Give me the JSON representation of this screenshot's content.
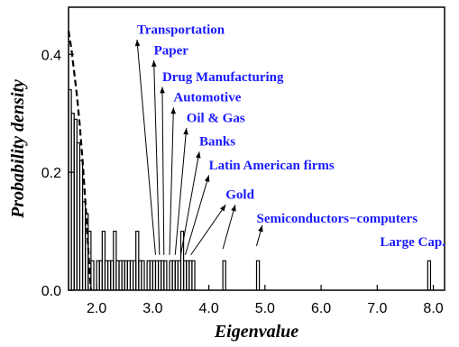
{
  "chart_data": {
    "type": "histogram",
    "xlabel": "Eigenvalue",
    "ylabel": "Probability density",
    "xlim": [
      1.5,
      8.2
    ],
    "ylim": [
      0.0,
      0.48
    ],
    "x_ticks": [
      2.0,
      3.0,
      4.0,
      5.0,
      6.0,
      7.0,
      8.0
    ],
    "x_tick_labels": [
      "2.0",
      "3.0",
      "4.0",
      "5.0",
      "6.0",
      "7.0",
      "8.0"
    ],
    "y_ticks": [
      0.0,
      0.2,
      0.4
    ],
    "y_tick_labels": [
      "0.0",
      "0.2",
      "0.4"
    ],
    "bin_width": 0.05,
    "bulk_histogram": {
      "x": [
        1.5,
        1.55,
        1.6,
        1.65,
        1.7,
        1.75,
        1.8,
        1.85,
        1.9,
        1.95
      ],
      "values": [
        0.34,
        0.3,
        0.29,
        0.25,
        0.22,
        0.15,
        0.13,
        0.1,
        0.05,
        0.0
      ]
    },
    "tail_histogram": {
      "x": [
        2.0,
        2.05,
        2.1,
        2.15,
        2.2,
        2.25,
        2.3,
        2.35,
        2.4,
        2.45,
        2.5,
        2.55,
        2.6,
        2.65,
        2.7,
        2.75,
        2.8,
        2.9,
        2.95,
        3.0,
        3.05,
        3.1,
        3.15,
        3.2,
        3.3,
        3.35,
        3.4,
        3.45,
        3.5,
        3.55,
        3.6,
        3.65,
        3.7,
        4.25,
        4.85,
        7.9
      ],
      "values": [
        0.05,
        0.05,
        0.1,
        0.05,
        0.05,
        0.05,
        0.1,
        0.05,
        0.05,
        0.05,
        0.05,
        0.05,
        0.05,
        0.05,
        0.1,
        0.05,
        0.05,
        0.05,
        0.05,
        0.05,
        0.05,
        0.05,
        0.05,
        0.05,
        0.05,
        0.05,
        0.05,
        0.05,
        0.1,
        0.05,
        0.05,
        0.05,
        0.05,
        0.05,
        0.05,
        0.05
      ]
    },
    "theory_curve": {
      "style": "dashed",
      "x": [
        1.5,
        1.55,
        1.6,
        1.65,
        1.7,
        1.75,
        1.8,
        1.84,
        1.87,
        1.89,
        1.9
      ],
      "values": [
        0.44,
        0.41,
        0.37,
        0.33,
        0.28,
        0.22,
        0.15,
        0.09,
        0.04,
        0.01,
        0.0
      ]
    },
    "annotation_color": "#1a1aff",
    "annotations": [
      {
        "label": "Transportation",
        "text_x": 2.72,
        "text_y": 0.435,
        "arrow_from": [
          3.05,
          0.06
        ],
        "arrow_to": [
          2.72,
          0.425
        ]
      },
      {
        "label": "Paper",
        "text_x": 3.02,
        "text_y": 0.4,
        "arrow_from": [
          3.12,
          0.06
        ],
        "arrow_to": [
          3.02,
          0.39
        ]
      },
      {
        "label": "Drug Manufacturing",
        "text_x": 3.17,
        "text_y": 0.355,
        "arrow_from": [
          3.2,
          0.06
        ],
        "arrow_to": [
          3.17,
          0.345
        ]
      },
      {
        "label": "Automotive",
        "text_x": 3.37,
        "text_y": 0.32,
        "arrow_from": [
          3.3,
          0.06
        ],
        "arrow_to": [
          3.37,
          0.31
        ]
      },
      {
        "label": "Oil & Gas",
        "text_x": 3.6,
        "text_y": 0.285,
        "arrow_from": [
          3.4,
          0.06
        ],
        "arrow_to": [
          3.6,
          0.275
        ]
      },
      {
        "label": "Banks",
        "text_x": 3.83,
        "text_y": 0.245,
        "arrow_from": [
          3.5,
          0.06
        ],
        "arrow_to": [
          3.83,
          0.235
        ]
      },
      {
        "label": "Latin American firms",
        "text_x": 4.0,
        "text_y": 0.205,
        "arrow_from": [
          3.58,
          0.06
        ],
        "arrow_to": [
          4.0,
          0.195
        ]
      },
      {
        "label": "Gold",
        "text_x": 4.3,
        "text_y": 0.155,
        "arrow_from": [
          3.68,
          0.06
        ],
        "arrow_to": [
          4.3,
          0.145
        ]
      },
      {
        "label": "Semiconductors−computers",
        "text_x": 4.85,
        "text_y": 0.115,
        "arrow_from": [
          4.25,
          0.07
        ],
        "arrow_to": [
          4.47,
          0.145
        ]
      },
      {
        "label": "Large Cap.",
        "text_x": 7.05,
        "text_y": 0.075,
        "arrow_from": [
          4.85,
          0.075
        ],
        "arrow_to": [
          4.95,
          0.11
        ]
      }
    ]
  }
}
